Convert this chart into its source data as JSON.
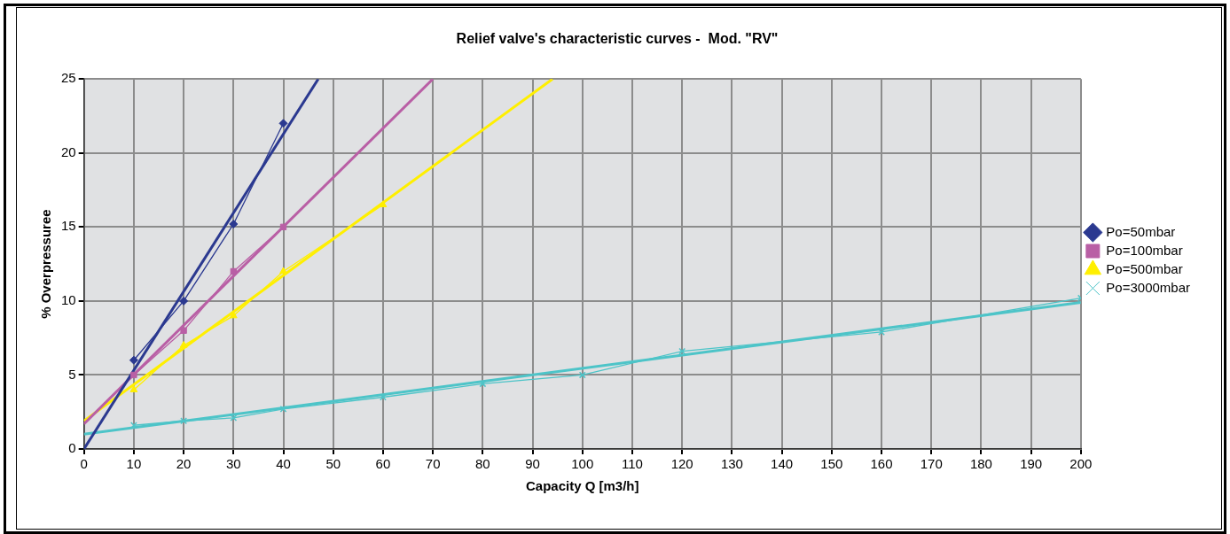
{
  "chart_data": {
    "type": "line",
    "title": "Relief valve's characteristic curves -  Mod. \"RV\"",
    "xlabel": "Capacity Q [m3/h]",
    "ylabel": "% Overpressuree",
    "xlim": [
      0,
      200
    ],
    "xticks": [
      0,
      10,
      20,
      30,
      40,
      50,
      60,
      70,
      80,
      90,
      100,
      110,
      120,
      130,
      140,
      150,
      160,
      170,
      180,
      190,
      200
    ],
    "ylim": [
      0,
      25
    ],
    "yticks": [
      0,
      5,
      10,
      15,
      20,
      25
    ],
    "grid": true,
    "legend": "right",
    "series": [
      {
        "name": "Po=50mbar",
        "color": "#2b3990",
        "marker": "diamond",
        "x": [
          10,
          20,
          30,
          40
        ],
        "values": [
          6,
          10,
          15.2,
          22
        ]
      },
      {
        "name": "Po=100mbar",
        "color": "#b95fa5",
        "marker": "square",
        "x": [
          10,
          20,
          30,
          40
        ],
        "values": [
          5,
          8,
          12,
          15
        ]
      },
      {
        "name": "Po=500mbar",
        "color": "#ffef00",
        "marker": "triangle",
        "x": [
          10,
          20,
          30,
          40,
          60
        ],
        "values": [
          4,
          7,
          9,
          12,
          16.5
        ]
      },
      {
        "name": "Po=3000mbar",
        "color": "#4dc4c8",
        "marker": "cross",
        "x": [
          10,
          20,
          30,
          40,
          60,
          80,
          100,
          120,
          160,
          200
        ],
        "values": [
          1.6,
          1.9,
          2.1,
          2.7,
          3.5,
          4.4,
          5,
          6.6,
          7.9,
          10.2
        ]
      },
      {
        "type": "line",
        "color": "#2b3990",
        "marker": "none",
        "x": [
          0,
          47
        ],
        "values": [
          0,
          25
        ]
      },
      {
        "type": "line",
        "color": "#b95fa5",
        "marker": "none",
        "x": [
          0,
          70
        ],
        "values": [
          1.7,
          25
        ]
      },
      {
        "type": "line",
        "color": "#ffef00",
        "marker": "none",
        "x": [
          0,
          94
        ],
        "values": [
          1.9,
          25
        ]
      },
      {
        "type": "line",
        "color": "#4dc4c8",
        "marker": "none",
        "x": [
          0,
          200
        ],
        "values": [
          1,
          9.9
        ]
      }
    ]
  }
}
